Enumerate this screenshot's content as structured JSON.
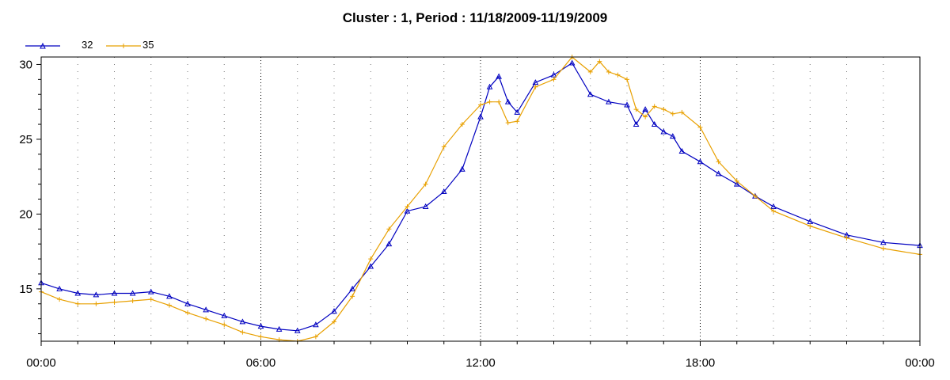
{
  "chart_data": {
    "type": "line",
    "title": "Cluster : 1, Period : 11/18/2009-11/19/2009",
    "xlabel": "",
    "ylabel": "",
    "x_ticks": [
      "00:00",
      "06:00",
      "12:00",
      "18:00",
      "00:00"
    ],
    "y_ticks": [
      "15",
      "20",
      "25",
      "30"
    ],
    "ylim": [
      11.5,
      30.5
    ],
    "xlim_hours": [
      0,
      24
    ],
    "grid": true,
    "legend_position": "top-left",
    "series": [
      {
        "name": "32",
        "color": "#0000c0",
        "marker": "triangle",
        "x": [
          0,
          0.5,
          1,
          1.5,
          2,
          2.5,
          3,
          3.5,
          4,
          4.5,
          5,
          5.5,
          6,
          6.5,
          7,
          7.5,
          8,
          8.5,
          9,
          9.5,
          10,
          10.5,
          11,
          11.5,
          12,
          12.25,
          12.5,
          12.75,
          13,
          13.5,
          14,
          14.5,
          15,
          15.5,
          16,
          16.25,
          16.5,
          16.75,
          17,
          17.25,
          17.5,
          18,
          18.5,
          19,
          19.5,
          20,
          21,
          22,
          23,
          24
        ],
        "y": [
          15.4,
          15.0,
          14.7,
          14.6,
          14.7,
          14.7,
          14.8,
          14.5,
          14.0,
          13.6,
          13.2,
          12.8,
          12.5,
          12.3,
          12.2,
          12.6,
          13.5,
          15.0,
          16.5,
          18.0,
          20.2,
          20.5,
          21.5,
          23.0,
          26.5,
          28.5,
          29.2,
          27.5,
          26.8,
          28.8,
          29.3,
          30.1,
          28.0,
          27.5,
          27.3,
          26.0,
          27.0,
          26.0,
          25.5,
          25.2,
          24.2,
          23.5,
          22.7,
          22.0,
          21.2,
          20.5,
          19.5,
          18.6,
          18.1,
          17.9
        ]
      },
      {
        "name": "35",
        "color": "#e8a000",
        "marker": "plus",
        "x": [
          0,
          0.5,
          1,
          1.5,
          2,
          2.5,
          3,
          3.5,
          4,
          4.5,
          5,
          5.5,
          6,
          6.5,
          7,
          7.5,
          8,
          8.5,
          9,
          9.5,
          10,
          10.5,
          11,
          11.5,
          12,
          12.25,
          12.5,
          12.75,
          13,
          13.5,
          14,
          14.5,
          15,
          15.25,
          15.5,
          15.75,
          16,
          16.25,
          16.5,
          16.75,
          17,
          17.25,
          17.5,
          18,
          18.5,
          19,
          19.5,
          20,
          21,
          22,
          23,
          24
        ],
        "y": [
          14.8,
          14.3,
          14.0,
          14.0,
          14.1,
          14.2,
          14.3,
          13.9,
          13.4,
          13.0,
          12.6,
          12.1,
          11.8,
          11.6,
          11.5,
          11.8,
          12.8,
          14.5,
          17.0,
          19.0,
          20.5,
          22.0,
          24.5,
          26.0,
          27.3,
          27.5,
          27.5,
          26.1,
          26.2,
          28.5,
          29.0,
          30.5,
          29.5,
          30.2,
          29.5,
          29.3,
          29.0,
          27.0,
          26.5,
          27.2,
          27.0,
          26.7,
          26.8,
          25.8,
          23.5,
          22.2,
          21.2,
          20.2,
          19.2,
          18.4,
          17.7,
          17.3
        ]
      }
    ]
  }
}
